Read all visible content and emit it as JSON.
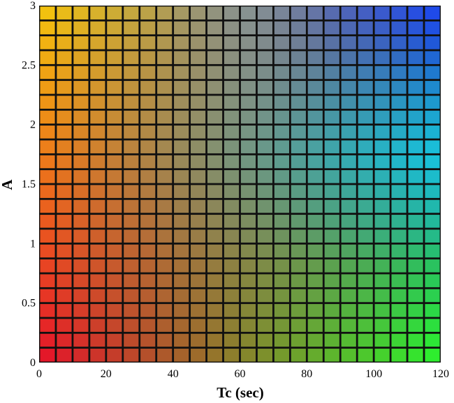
{
  "chart_data": {
    "type": "heatmap",
    "title": "",
    "xlabel": "Tc (sec)",
    "ylabel": "A",
    "xlim": [
      0,
      120
    ],
    "ylim": [
      0,
      3
    ],
    "x_ticks": [
      "0",
      "20",
      "40",
      "60",
      "80",
      "100",
      "120"
    ],
    "y_ticks": [
      "0",
      "0.5",
      "1",
      "1.5",
      "2",
      "2.5",
      "3"
    ],
    "grid_columns": 24,
    "grid_rows": 24,
    "corner_colors": {
      "low_Tc_low_A": "#e8102a",
      "low_Tc_high_A": "#f7c70a",
      "high_Tc_low_A": "#2af52a",
      "high_Tc_high_A": "#1a44f2"
    },
    "mid_colors": {
      "high_Tc_mid_A": "#15d2f0",
      "mid_Tc_high_A": "#8aa0a0"
    },
    "cell_border_color": "#111111",
    "legend": "none",
    "grid": true
  }
}
